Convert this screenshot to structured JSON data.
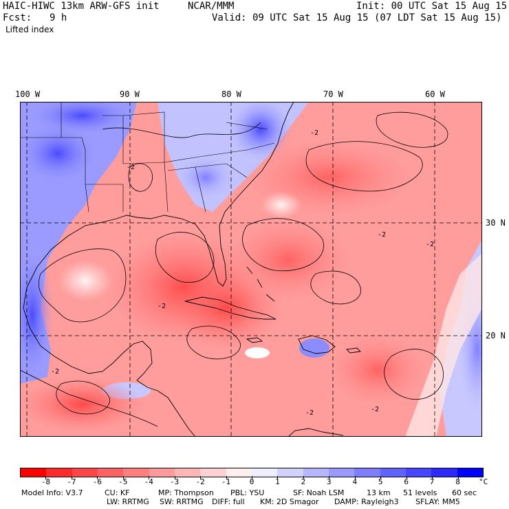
{
  "header": {
    "model_title": "HAIC-HIWC 13km ARW-GFS init",
    "org": "NCAR/MMM",
    "init": "Init: 00 UTC Sat 15 Aug 15",
    "fcst_label": "Fcst:",
    "fcst_value": "9 h",
    "valid": "Valid: 09 UTC Sat 15 Aug 15 (07 LDT Sat 15 Aug 15)",
    "field": "Lifted index"
  },
  "map": {
    "lon_labels": [
      "100 W",
      "90 W",
      "80 W",
      "70 W",
      "60 W"
    ],
    "lat_labels": [
      "30 N",
      "20 N"
    ],
    "contour_labels": [
      "-2",
      "-2",
      "-2",
      "-2",
      "-2",
      "-2",
      "-2",
      "-2"
    ]
  },
  "colorbar": {
    "colors": [
      "#ff0000",
      "#ff2a2a",
      "#ff4646",
      "#ff6262",
      "#ff7e7e",
      "#ff9a9a",
      "#ffb6b6",
      "#ffd2d2",
      "#ffeeee",
      "#eeeeff",
      "#d2d2ff",
      "#b6b6ff",
      "#9a9aff",
      "#7e7eff",
      "#6262ff",
      "#4646ff",
      "#2a2aff",
      "#0000ff"
    ],
    "ticks": [
      "-8",
      "-7",
      "-6",
      "-5",
      "-4",
      "-3",
      "-2",
      "-1",
      "0",
      "1",
      "2",
      "3",
      "4",
      "5",
      "6",
      "7",
      "8"
    ],
    "unit": "°C"
  },
  "footer": {
    "line1": [
      "Model Info: V3.7",
      "CU: KF",
      "MP: Thompson",
      "PBL: YSU",
      "SF: Noah LSM",
      "13 km",
      "51 levels",
      "60 sec"
    ],
    "line2": [
      "LW: RRTMG",
      "SW: RRTMG",
      "DIFF: full",
      "KM: 2D Smagor",
      "DAMP: Rayleigh3",
      "SFLAY: MM5"
    ]
  }
}
